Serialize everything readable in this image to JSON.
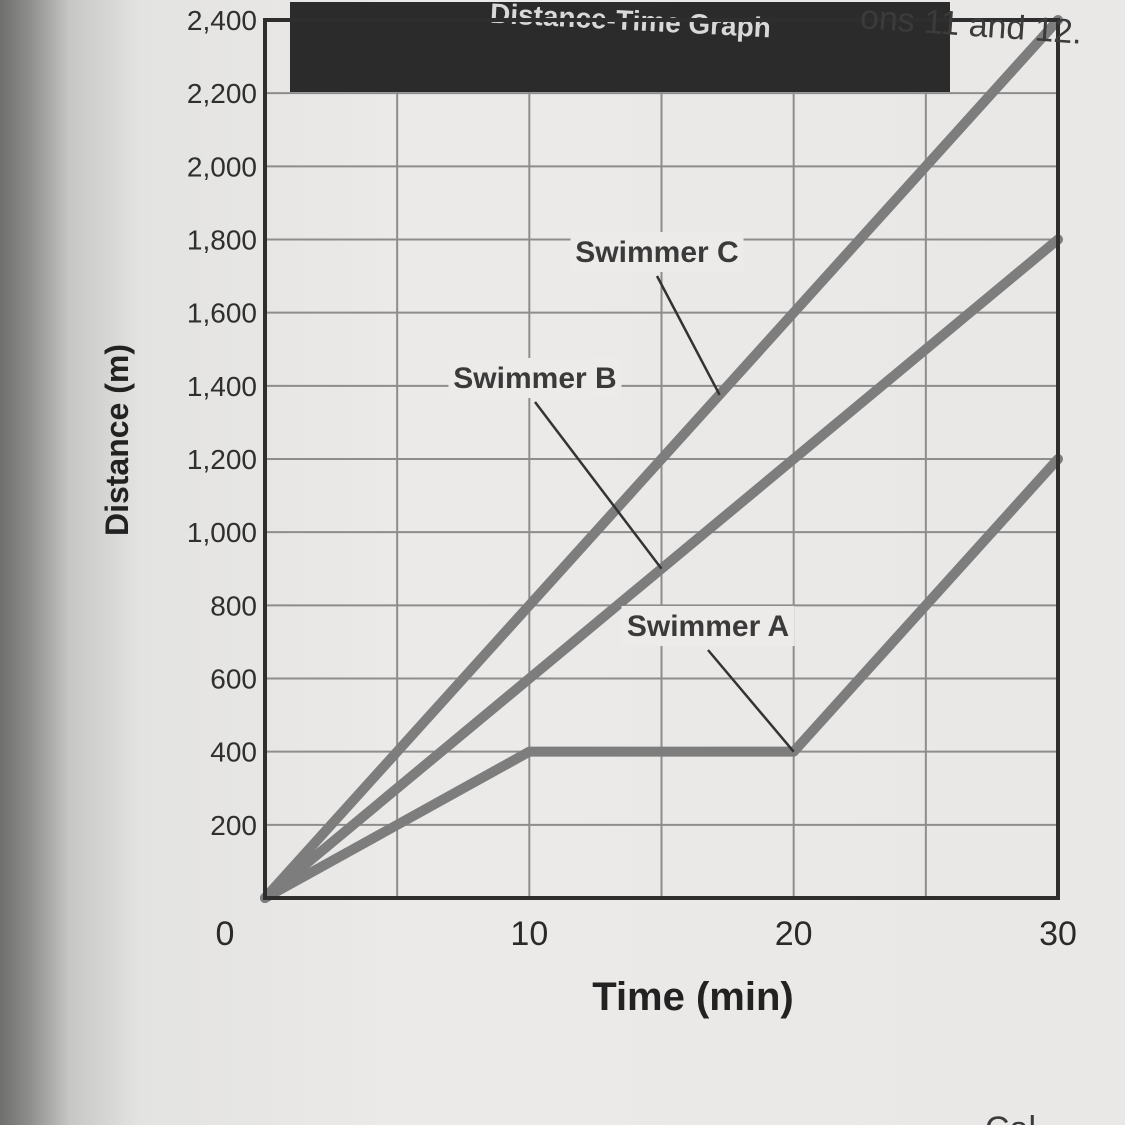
{
  "page": {
    "caption_fragment": "ons 11 and 12.",
    "bottom_fragment": "Cal"
  },
  "chart_data": {
    "type": "line",
    "title": "Distance-Time Graph",
    "xlabel": "Time (min)",
    "ylabel": "Distance (m)",
    "xlim": [
      0,
      30
    ],
    "ylim": [
      0,
      2400
    ],
    "x_ticks": [
      "0",
      "10",
      "20",
      "30"
    ],
    "y_ticks": [
      "200",
      "400",
      "600",
      "800",
      "1,000",
      "1,200",
      "1,400",
      "1,600",
      "1,800",
      "2,000",
      "2,200",
      "2,400"
    ],
    "grid": true,
    "series": [
      {
        "name": "Swimmer A",
        "x": [
          0,
          10,
          20,
          30
        ],
        "y": [
          0,
          400,
          400,
          1200
        ]
      },
      {
        "name": "Swimmer B",
        "x": [
          0,
          30
        ],
        "y": [
          0,
          1800
        ]
      },
      {
        "name": "Swimmer C",
        "x": [
          0,
          30
        ],
        "y": [
          0,
          2400
        ]
      }
    ],
    "colors": {
      "series": "#7d7d7d",
      "grid": "#8d8d8d",
      "title_bar": "#2b2b2b"
    }
  }
}
